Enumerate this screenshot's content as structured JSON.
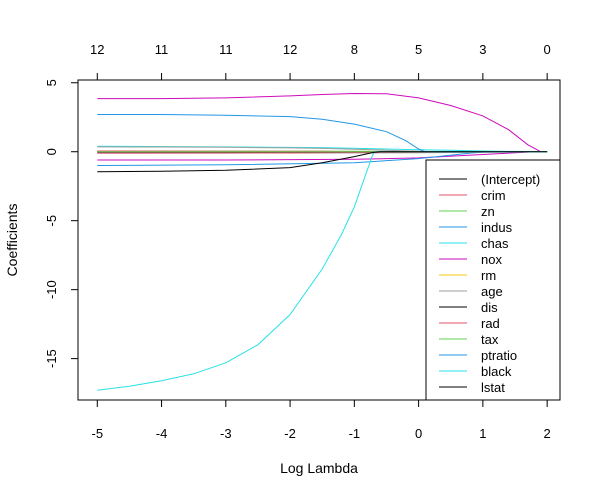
{
  "chart_data": {
    "type": "line",
    "xlabel": "Log Lambda",
    "ylabel": "Coefficients",
    "xlim": [
      -5.3,
      2.2
    ],
    "ylim": [
      -18.0,
      5.2
    ],
    "xticks": [
      "-5",
      "-4",
      "-3",
      "-2",
      "-1",
      "0",
      "1",
      "2"
    ],
    "xtick_values": [
      -5,
      -4,
      -3,
      -2,
      -1,
      0,
      1,
      2
    ],
    "yticks": [
      "-15",
      "-10",
      "-5",
      "0",
      "5"
    ],
    "ytick_values": [
      -15,
      -10,
      -5,
      0,
      5
    ],
    "top_axis_ticks": [
      "12",
      "11",
      "11",
      "12",
      "8",
      "5",
      "3",
      "0"
    ],
    "legend_position": "right",
    "grid": false,
    "series": [
      {
        "name": "(Intercept)",
        "color": "#000000",
        "points": [
          [
            -5,
            0
          ],
          [
            2,
            0
          ]
        ]
      },
      {
        "name": "crim",
        "color": "#DF536B",
        "points": [
          [
            -5,
            -0.1
          ],
          [
            -2,
            -0.09
          ],
          [
            -0.5,
            -0.05
          ],
          [
            0.5,
            -0.02
          ],
          [
            1.5,
            0
          ],
          [
            2,
            0
          ]
        ]
      },
      {
        "name": "zn",
        "color": "#61D04F",
        "points": [
          [
            -5,
            0.05
          ],
          [
            -2,
            0.04
          ],
          [
            -1,
            0.03
          ],
          [
            0,
            0.01
          ],
          [
            0.2,
            0
          ],
          [
            2,
            0
          ]
        ]
      },
      {
        "name": "indus",
        "color": "#2297E6",
        "points": [
          [
            -5,
            -0.02
          ],
          [
            -2,
            -0.02
          ],
          [
            -1,
            -0.01
          ],
          [
            -0.6,
            0
          ],
          [
            2,
            0
          ]
        ]
      },
      {
        "name": "chas",
        "color": "#28E2E5",
        "points": [
          [
            -5,
            0.4
          ],
          [
            -3,
            0.35
          ],
          [
            -1.5,
            0.3
          ],
          [
            -0.5,
            0.2
          ],
          [
            0,
            0.15
          ],
          [
            0.5,
            0.1
          ],
          [
            1,
            0.05
          ],
          [
            1.5,
            0.02
          ],
          [
            2,
            0
          ]
        ]
      },
      {
        "name": "nox",
        "color": "#CD0BBC",
        "points": [
          [
            -5,
            3.85
          ],
          [
            -4,
            3.85
          ],
          [
            -3,
            3.9
          ],
          [
            -2,
            4.05
          ],
          [
            -1.5,
            4.15
          ],
          [
            -1,
            4.22
          ],
          [
            -0.5,
            4.2
          ],
          [
            0,
            3.9
          ],
          [
            0.5,
            3.35
          ],
          [
            1,
            2.6
          ],
          [
            1.4,
            1.6
          ],
          [
            1.7,
            0.5
          ],
          [
            1.9,
            0
          ]
        ]
      },
      {
        "name": "rm",
        "color": "#F5C710",
        "points": [
          [
            -5,
            0.02
          ],
          [
            -2,
            0.01
          ],
          [
            0,
            0
          ],
          [
            2,
            0
          ]
        ]
      },
      {
        "name": "age",
        "color": "#9E9E9E",
        "points": [
          [
            -5,
            0.35
          ],
          [
            -4,
            0.34
          ],
          [
            -3,
            0.32
          ],
          [
            -2,
            0.28
          ],
          [
            -1.5,
            0.24
          ],
          [
            -1,
            0.18
          ],
          [
            -0.5,
            0.11
          ],
          [
            0,
            0.04
          ],
          [
            0.3,
            0
          ],
          [
            2,
            0
          ]
        ]
      },
      {
        "name": "dis",
        "color": "#000000",
        "points": [
          [
            -5,
            -0.02
          ],
          [
            -3,
            -0.02
          ],
          [
            -1.5,
            -0.01
          ],
          [
            -1,
            0
          ],
          [
            2,
            0
          ]
        ]
      },
      {
        "name": "rad",
        "color": "#DF536B",
        "points": [
          [
            -5,
            0.05
          ],
          [
            -3,
            0.04
          ],
          [
            -1.5,
            0.03
          ],
          [
            -1,
            0
          ],
          [
            2,
            0
          ]
        ]
      },
      {
        "name": "tax",
        "color": "#61D04F",
        "points": [
          [
            -5,
            0
          ],
          [
            2,
            0
          ]
        ]
      },
      {
        "name": "ptratio",
        "color": "#2297E6",
        "points": [
          [
            -5,
            2.7
          ],
          [
            -4,
            2.7
          ],
          [
            -3,
            2.65
          ],
          [
            -2,
            2.55
          ],
          [
            -1.5,
            2.35
          ],
          [
            -1,
            2.0
          ],
          [
            -0.5,
            1.45
          ],
          [
            -0.2,
            0.8
          ],
          [
            0,
            0.2
          ],
          [
            0.1,
            0
          ],
          [
            2,
            0
          ]
        ]
      },
      {
        "name": "black",
        "color": "#28E2E5",
        "points": [
          [
            -5,
            -17.3
          ],
          [
            -4.5,
            -17.0
          ],
          [
            -4,
            -16.6
          ],
          [
            -3.5,
            -16.1
          ],
          [
            -3,
            -15.3
          ],
          [
            -2.5,
            -14.0
          ],
          [
            -2,
            -11.8
          ],
          [
            -1.5,
            -8.5
          ],
          [
            -1.2,
            -6.0
          ],
          [
            -1,
            -4.0
          ],
          [
            -0.85,
            -2.0
          ],
          [
            -0.72,
            -0.3
          ],
          [
            -0.68,
            0
          ],
          [
            2,
            0
          ]
        ]
      },
      {
        "name": "lstat",
        "color": "#000000",
        "points": [
          [
            -5,
            -1.45
          ],
          [
            -4,
            -1.42
          ],
          [
            -3,
            -1.35
          ],
          [
            -2,
            -1.15
          ],
          [
            -1.5,
            -0.8
          ],
          [
            -1,
            -0.35
          ],
          [
            -0.7,
            -0.05
          ],
          [
            -0.6,
            0
          ],
          [
            2,
            0
          ]
        ]
      }
    ],
    "extra_lines": [
      {
        "color": "#CD0BBC",
        "points": [
          [
            -5,
            -0.6
          ],
          [
            -3,
            -0.6
          ],
          [
            -1,
            -0.55
          ],
          [
            0,
            -0.45
          ],
          [
            1,
            -0.2
          ],
          [
            1.8,
            0
          ],
          [
            2,
            0
          ]
        ]
      },
      {
        "color": "#2297E6",
        "points": [
          [
            -5,
            -1.0
          ],
          [
            -3,
            -0.95
          ],
          [
            -1,
            -0.8
          ],
          [
            0,
            -0.5
          ],
          [
            0.8,
            -0.1
          ],
          [
            1.1,
            0
          ],
          [
            2,
            0
          ]
        ]
      },
      {
        "color": "#9E9E9E",
        "points": [
          [
            -5,
            -0.1
          ],
          [
            -3,
            -0.1
          ],
          [
            0,
            -0.08
          ],
          [
            1.5,
            -0.03
          ],
          [
            2,
            0
          ]
        ]
      }
    ]
  }
}
